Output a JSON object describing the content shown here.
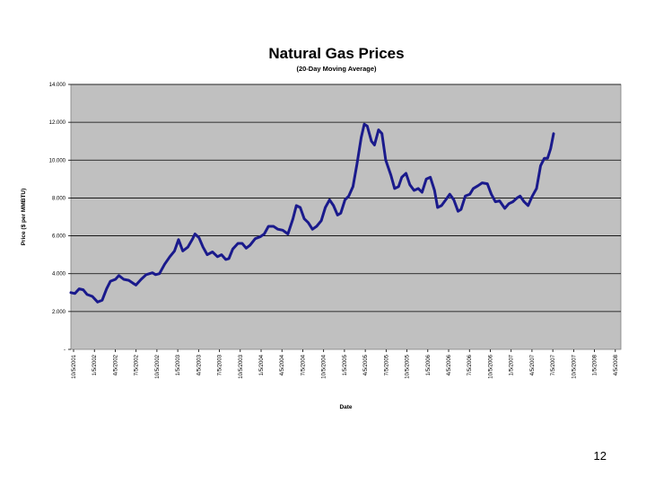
{
  "page": {
    "number": "12"
  },
  "chart_data": {
    "type": "line",
    "title": "Natural Gas Prices",
    "subtitle": "(20-Day Moving Average)",
    "xlabel": "Date",
    "ylabel": "Price ($ per MMBTU)",
    "ylim": [
      0,
      14
    ],
    "yticks": [
      0,
      2,
      4,
      6,
      8,
      10,
      12,
      14
    ],
    "ytick_labels": [
      "-",
      "2.000",
      "4.000",
      "6.000",
      "8.000",
      "10.000",
      "12.000",
      "14.000"
    ],
    "xlim": [
      "10/5/2001",
      "4/5/2009"
    ],
    "xtick_labels": [
      "10/5/2001",
      "1/5/2002",
      "4/5/2002",
      "7/5/2002",
      "10/5/2002",
      "1/5/2003",
      "4/5/2003",
      "7/5/2003",
      "10/5/2003",
      "1/5/2004",
      "4/5/2004",
      "7/5/2004",
      "10/5/2004",
      "1/5/2005",
      "4/5/2005",
      "7/5/2005",
      "10/5/2005",
      "1/5/2006",
      "4/5/2006",
      "7/5/2006",
      "10/5/2006",
      "1/5/2007",
      "4/5/2007",
      "7/5/2007",
      "10/5/2007",
      "1/5/2008",
      "4/5/2008"
    ],
    "grid": true,
    "legend": "none",
    "plot_background": "#c0c0c0",
    "series": [
      {
        "color": "#1a1a8c",
        "points": [
          [
            "10/5/2001",
            3.0
          ],
          [
            "10/25/2001",
            2.95
          ],
          [
            "11/15/2001",
            3.2
          ],
          [
            "12/5/2001",
            3.15
          ],
          [
            "12/25/2001",
            2.9
          ],
          [
            "1/20/2002",
            2.8
          ],
          [
            "2/15/2002",
            2.5
          ],
          [
            "3/10/2002",
            2.6
          ],
          [
            "4/1/2002",
            3.2
          ],
          [
            "4/20/2002",
            3.6
          ],
          [
            "5/15/2002",
            3.7
          ],
          [
            "6/1/2002",
            3.9
          ],
          [
            "6/25/2002",
            3.7
          ],
          [
            "7/20/2002",
            3.65
          ],
          [
            "8/10/2002",
            3.5
          ],
          [
            "8/25/2002",
            3.4
          ],
          [
            "9/20/2002",
            3.7
          ],
          [
            "10/15/2002",
            3.95
          ],
          [
            "11/15/2002",
            4.05
          ],
          [
            "12/1/2002",
            3.95
          ],
          [
            "12/20/2002",
            4.0
          ],
          [
            "1/15/2003",
            4.5
          ],
          [
            "2/10/2003",
            4.9
          ],
          [
            "3/5/2003",
            5.2
          ],
          [
            "3/25/2003",
            5.8
          ],
          [
            "4/15/2003",
            5.2
          ],
          [
            "5/10/2003",
            5.4
          ],
          [
            "6/1/2003",
            5.8
          ],
          [
            "6/15/2003",
            6.1
          ],
          [
            "7/5/2003",
            5.9
          ],
          [
            "7/25/2003",
            5.4
          ],
          [
            "8/15/2003",
            5.0
          ],
          [
            "9/10/2003",
            5.15
          ],
          [
            "10/5/2003",
            4.9
          ],
          [
            "10/25/2003",
            5.0
          ],
          [
            "11/15/2003",
            4.75
          ],
          [
            "12/1/2003",
            4.8
          ],
          [
            "12/20/2003",
            5.3
          ],
          [
            "1/15/2004",
            5.6
          ],
          [
            "2/5/2004",
            5.6
          ],
          [
            "2/25/2004",
            5.35
          ],
          [
            "3/15/2004",
            5.5
          ],
          [
            "4/10/2004",
            5.85
          ],
          [
            "5/5/2004",
            5.95
          ],
          [
            "5/25/2004",
            6.1
          ],
          [
            "6/15/2004",
            6.5
          ],
          [
            "7/10/2004",
            6.5
          ],
          [
            "8/1/2004",
            6.35
          ],
          [
            "8/25/2004",
            6.3
          ],
          [
            "9/20/2004",
            6.1
          ],
          [
            "10/15/2004",
            6.9
          ],
          [
            "11/1/2004",
            7.6
          ],
          [
            "11/20/2004",
            7.5
          ],
          [
            "12/10/2004",
            6.9
          ],
          [
            "12/30/2004",
            6.7
          ],
          [
            "1/20/2005",
            6.35
          ],
          [
            "2/10/2005",
            6.5
          ],
          [
            "3/5/2005",
            6.8
          ],
          [
            "3/25/2005",
            7.5
          ],
          [
            "4/15/2005",
            7.9
          ],
          [
            "5/5/2005",
            7.6
          ],
          [
            "5/25/2005",
            7.1
          ],
          [
            "6/10/2005",
            7.2
          ],
          [
            "7/1/2005",
            7.9
          ],
          [
            "7/20/2005",
            8.1
          ],
          [
            "8/10/2005",
            8.6
          ],
          [
            "8/30/2005",
            9.8
          ],
          [
            "9/20/2005",
            11.2
          ],
          [
            "10/5/2005",
            11.9
          ],
          [
            "10/20/2005",
            11.8
          ],
          [
            "11/10/2005",
            11.0
          ],
          [
            "11/25/2005",
            10.8
          ],
          [
            "12/15/2005",
            11.6
          ],
          [
            "1/1/2006",
            11.4
          ],
          [
            "1/20/2006",
            10.0
          ],
          [
            "2/15/2006",
            9.2
          ],
          [
            "3/5/2006",
            8.5
          ],
          [
            "3/25/2006",
            8.6
          ],
          [
            "4/10/2006",
            9.1
          ],
          [
            "5/1/2006",
            9.3
          ],
          [
            "5/20/2006",
            8.7
          ],
          [
            "6/10/2006",
            8.4
          ],
          [
            "7/1/2006",
            8.5
          ],
          [
            "7/20/2006",
            8.3
          ],
          [
            "8/10/2006",
            9.0
          ],
          [
            "8/30/2006",
            9.1
          ],
          [
            "9/20/2006",
            8.4
          ],
          [
            "10/5/2006",
            7.5
          ],
          [
            "10/25/2006",
            7.6
          ],
          [
            "11/15/2006",
            7.9
          ],
          [
            "12/5/2006",
            8.2
          ],
          [
            "12/25/2006",
            7.9
          ],
          [
            "1/15/2007",
            7.3
          ],
          [
            "1/30/2007",
            7.4
          ],
          [
            "2/20/2007",
            8.1
          ],
          [
            "3/15/2007",
            8.2
          ],
          [
            "4/1/2007",
            8.5
          ],
          [
            "4/25/2007",
            8.65
          ],
          [
            "5/15/2007",
            8.8
          ],
          [
            "6/10/2007",
            8.75
          ],
          [
            "6/30/2007",
            8.2
          ],
          [
            "7/20/2007",
            7.8
          ],
          [
            "8/10/2007",
            7.85
          ],
          [
            "9/5/2007",
            7.45
          ],
          [
            "9/25/2007",
            7.7
          ],
          [
            "10/15/2007",
            7.8
          ],
          [
            "11/5/2007",
            8.0
          ],
          [
            "11/20/2007",
            8.1
          ],
          [
            "12/10/2007",
            7.8
          ],
          [
            "12/30/2007",
            7.6
          ],
          [
            "1/20/2008",
            8.1
          ],
          [
            "2/10/2008",
            8.5
          ],
          [
            "3/1/2008",
            9.7
          ],
          [
            "3/20/2008",
            10.1
          ],
          [
            "4/5/2008",
            10.1
          ],
          [
            "4/20/2008",
            10.6
          ],
          [
            "5/5/2008",
            11.4
          ]
        ]
      }
    ]
  }
}
